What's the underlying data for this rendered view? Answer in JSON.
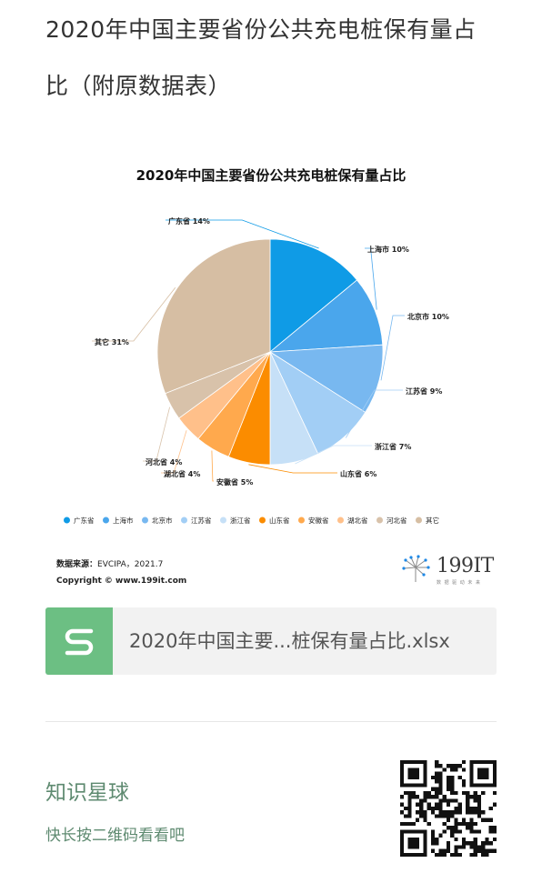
{
  "article": {
    "title_line1": "2020年中国主要省份公共充电桩保有量占",
    "title_line2": "比（附原数据表）"
  },
  "chart_data": {
    "type": "pie",
    "title": "2020年中国主要省份公共充电桩保有量占比",
    "unit": "%",
    "legend_position": "bottom",
    "slices": [
      {
        "label": "广东省",
        "value": 14,
        "color": "#0f9be6",
        "text": "广东省 14%"
      },
      {
        "label": "上海市",
        "value": 10,
        "color": "#4aa6ec",
        "text": "上海市 10%"
      },
      {
        "label": "北京市",
        "value": 10,
        "color": "#78b8f0",
        "text": "北京市 10%"
      },
      {
        "label": "江苏省",
        "value": 9,
        "color": "#a2cef5",
        "text": "江苏省 9%"
      },
      {
        "label": "浙江省",
        "value": 7,
        "color": "#c6e0f7",
        "text": "浙江省 7%"
      },
      {
        "label": "山东省",
        "value": 6,
        "color": "#fb8c00",
        "text": "山东省 6%"
      },
      {
        "label": "安徽省",
        "value": 5,
        "color": "#ffa94d",
        "text": "安徽省 5%"
      },
      {
        "label": "湖北省",
        "value": 4,
        "color": "#ffc08a",
        "text": "湖北省 4%"
      },
      {
        "label": "河北省",
        "value": 4,
        "color": "#d8c2aa",
        "text": "河北省 4%"
      },
      {
        "label": "其它",
        "value": 31,
        "color": "#d6bea3",
        "text": "其它 31%"
      }
    ]
  },
  "source": {
    "label": "数据来源：",
    "text": "EVCIPA，2021.7",
    "copyright": "Copyright © www.199it.com"
  },
  "brand": {
    "name": "199IT",
    "tagline": "数 据 驱 动 未 来"
  },
  "file": {
    "name": "2020年中国主要...桩保有量占比.xlsx"
  },
  "planet": {
    "title": "知识星球",
    "subtitle": "快长按二维码看看吧"
  }
}
